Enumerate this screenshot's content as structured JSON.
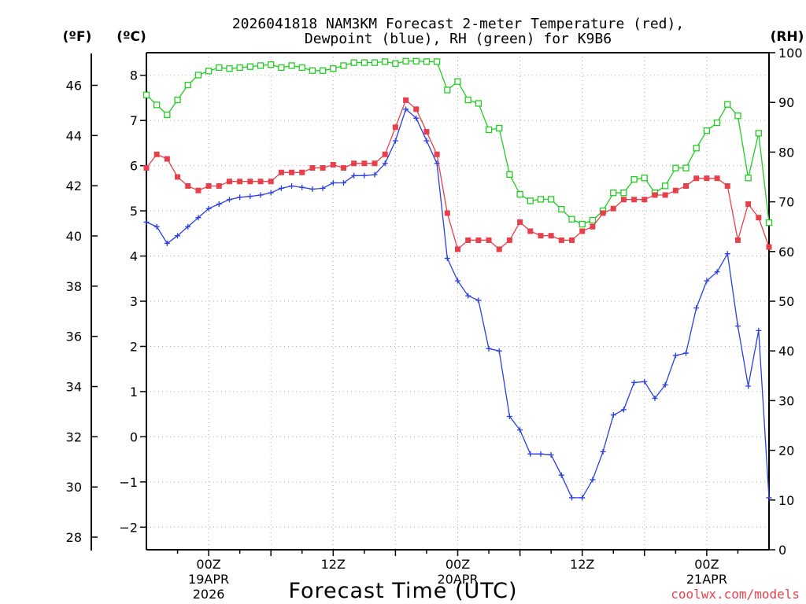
{
  "chart_data": {
    "type": "line",
    "title_line1": "2026041818 NAM3KM Forecast 2-meter Temperature (red),",
    "title_line2": "Dewpoint (blue), RH (green) for K9B6",
    "units": {
      "fahrenheit": "(ºF)",
      "celsius": "(ºC)",
      "rh": "(RH)"
    },
    "xlabel": "Forecast Time (UTC)",
    "credit": "coolwx.com/models",
    "credit_color": "#e8404b",
    "x_range_hours": [
      0,
      60
    ],
    "ylim_celsius": [
      -2.5,
      8.5
    ],
    "ylim_fahrenheit": [
      27.5,
      47.3
    ],
    "ylim_rh": [
      0,
      100
    ],
    "grid": true,
    "celsius_ticks": [
      "8",
      "7",
      "6",
      "5",
      "4",
      "3",
      "2",
      "1",
      "0",
      "−1",
      "−2"
    ],
    "celsius_tick_values": [
      8,
      7,
      6,
      5,
      4,
      3,
      2,
      1,
      0,
      -1,
      -2
    ],
    "fahrenheit_ticks": [
      "46",
      "44",
      "42",
      "40",
      "38",
      "36",
      "34",
      "32",
      "30",
      "28"
    ],
    "fahrenheit_tick_values": [
      46,
      44,
      42,
      40,
      38,
      36,
      34,
      32,
      30,
      28
    ],
    "rh_ticks": [
      "100",
      "90",
      "80",
      "70",
      "60",
      "50",
      "40",
      "30",
      "20",
      "10",
      "0"
    ],
    "rh_tick_values": [
      100,
      90,
      80,
      70,
      60,
      50,
      40,
      30,
      20,
      10,
      0
    ],
    "x_ticks": [
      {
        "hour": 6,
        "label": "00Z",
        "sub1": "19APR",
        "sub2": "2026"
      },
      {
        "hour": 18,
        "label": "12Z",
        "sub1": "",
        "sub2": ""
      },
      {
        "hour": 30,
        "label": "00Z",
        "sub1": "20APR",
        "sub2": ""
      },
      {
        "hour": 42,
        "label": "12Z",
        "sub1": "",
        "sub2": ""
      },
      {
        "hour": 54,
        "label": "00Z",
        "sub1": "21APR",
        "sub2": ""
      }
    ],
    "series": [
      {
        "name": "2-meter Temperature",
        "unit": "C",
        "color": "#e8404b",
        "marker": "filled-square",
        "values": [
          5.95,
          6.25,
          6.15,
          5.75,
          5.55,
          5.45,
          5.55,
          5.55,
          5.65,
          5.65,
          5.65,
          5.65,
          5.65,
          5.85,
          5.85,
          5.85,
          5.95,
          5.95,
          6.02,
          5.95,
          6.05,
          6.05,
          6.05,
          6.25,
          6.85,
          7.45,
          7.25,
          6.75,
          6.25,
          4.95,
          4.15,
          4.35,
          4.35,
          4.35,
          4.15,
          4.35,
          4.75,
          4.55,
          4.45,
          4.45,
          4.35,
          4.35,
          4.55,
          4.65,
          4.95,
          5.05,
          5.25,
          5.25,
          5.25,
          5.35,
          5.35,
          5.45,
          5.55,
          5.72,
          5.72,
          5.72,
          5.55,
          4.35,
          5.15,
          4.85,
          4.2
        ]
      },
      {
        "name": "Dewpoint",
        "unit": "C",
        "color": "#2b3fe0",
        "marker": "plus",
        "values": [
          4.75,
          4.65,
          4.28,
          4.45,
          4.65,
          4.85,
          5.05,
          5.15,
          5.25,
          5.3,
          5.32,
          5.35,
          5.4,
          5.5,
          5.55,
          5.52,
          5.48,
          5.5,
          5.62,
          5.62,
          5.78,
          5.78,
          5.8,
          6.05,
          6.55,
          7.25,
          7.05,
          6.55,
          6.05,
          3.95,
          3.45,
          3.12,
          3.02,
          1.95,
          1.9,
          0.45,
          0.15,
          -0.38,
          -0.38,
          -0.4,
          -0.85,
          -1.35,
          -1.35,
          -0.95,
          -0.33,
          0.48,
          0.6,
          1.2,
          1.22,
          0.85,
          1.15,
          1.8,
          1.85,
          2.85,
          3.45,
          3.65,
          4.05,
          2.45,
          1.12,
          2.35,
          -1.35
        ]
      },
      {
        "name": "RH",
        "unit": "%",
        "color": "#22cc22",
        "marker": "open-square",
        "values": [
          91.5,
          89.5,
          87.5,
          90.5,
          93.5,
          95.5,
          96.3,
          97,
          96.8,
          97,
          97.2,
          97.4,
          97.6,
          97,
          97.4,
          97,
          96.4,
          96.4,
          96.8,
          97.4,
          98,
          98,
          98,
          98.2,
          97.8,
          98.3,
          98.3,
          98.2,
          98.2,
          92.5,
          94.2,
          90.5,
          89.8,
          84.5,
          84.8,
          75.5,
          71.5,
          70.2,
          70.5,
          70.5,
          68.5,
          66.5,
          65.5,
          66.3,
          68.2,
          71.8,
          71.8,
          74.5,
          74.8,
          71.8,
          73.2,
          76.8,
          76.8,
          80.8,
          84.3,
          85.9,
          89.6,
          87.3,
          74.8,
          83.8,
          65.8
        ]
      }
    ]
  }
}
